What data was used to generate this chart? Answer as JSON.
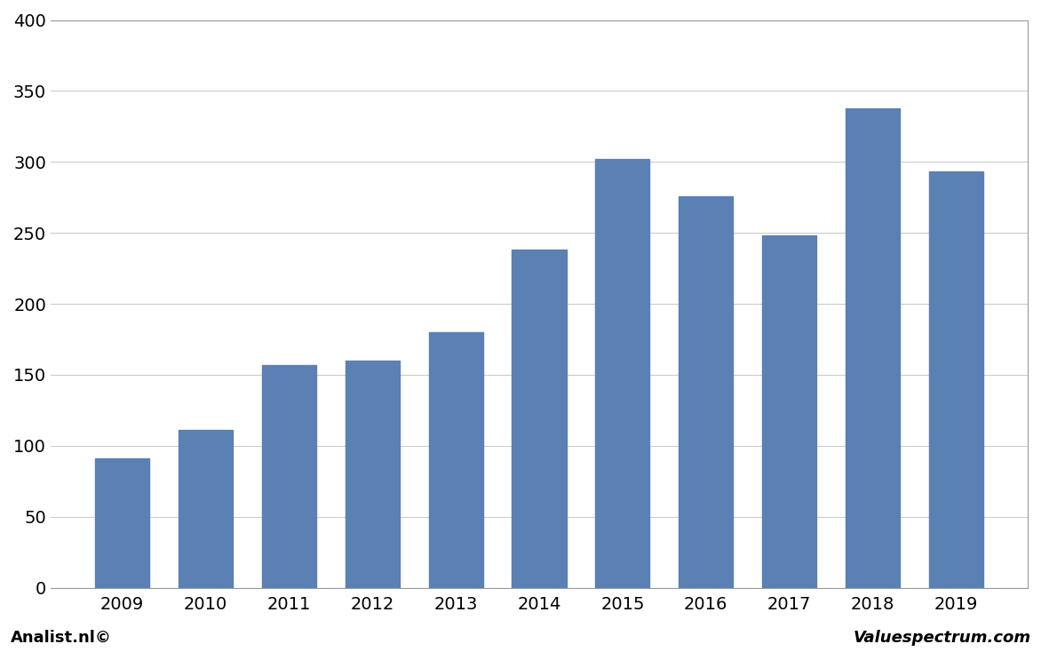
{
  "categories": [
    "2009",
    "2010",
    "2011",
    "2012",
    "2013",
    "2014",
    "2015",
    "2016",
    "2017",
    "2018",
    "2019"
  ],
  "values": [
    91,
    111,
    157,
    160,
    180,
    238,
    302,
    276,
    248,
    338,
    293
  ],
  "bar_color": "#5a80b4",
  "ylim": [
    0,
    400
  ],
  "yticks": [
    0,
    50,
    100,
    150,
    200,
    250,
    300,
    350,
    400
  ],
  "background_color": "#ffffff",
  "plot_bg_color": "#ffffff",
  "grid_color": "#cccccc",
  "footer_left": "Analist.nl©",
  "footer_right": "Valuespectrum.com",
  "bar_width": 0.65,
  "tick_fontsize": 14,
  "footer_fontsize": 13
}
